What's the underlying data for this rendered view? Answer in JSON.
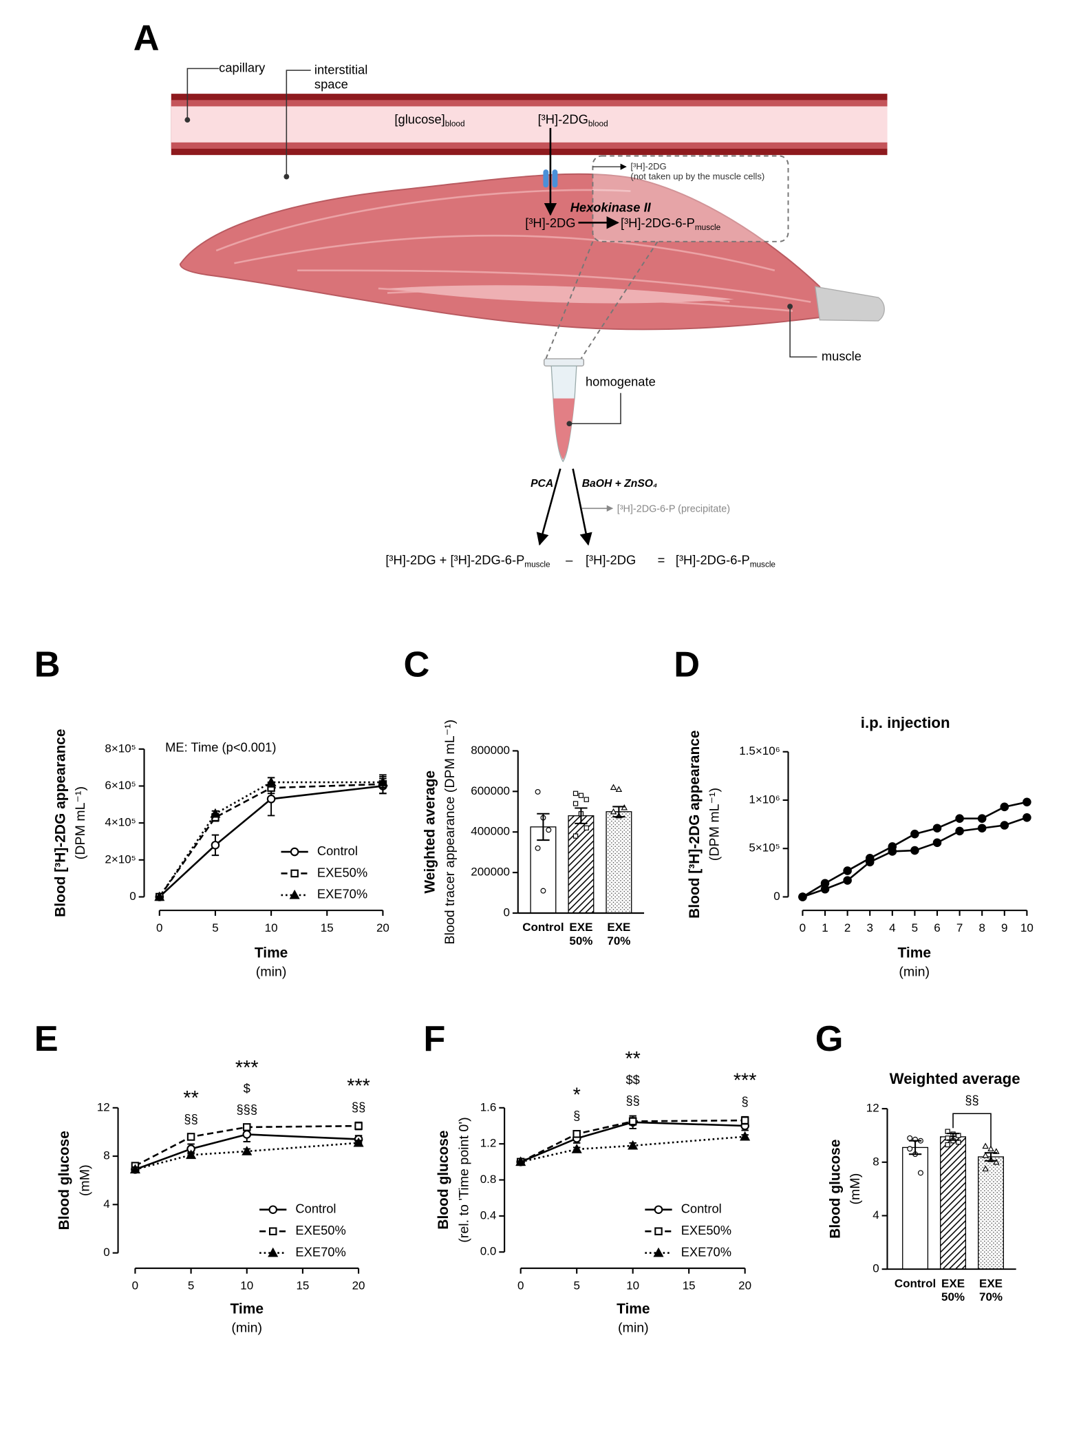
{
  "diagram": {
    "panel_label": "A",
    "capillary": "capillary",
    "interstitial_space": [
      "interstitial",
      "space"
    ],
    "glucose_blood": {
      "main": "[glucose]",
      "sub": "blood"
    },
    "tracer_blood": {
      "main": "[³H]-2DG",
      "sub": "blood"
    },
    "not_taken_up": [
      "[³H]-2DG",
      "(not taken up by the muscle cells)"
    ],
    "enzyme": "Hexokinase II",
    "substrate": "[³H]-2DG",
    "product": {
      "main": "[³H]-2DG-6-P",
      "sub": "muscle"
    },
    "muscle": "muscle",
    "homogenate": "homogenate",
    "pca": "PCA",
    "precipitation": "BaOH + ZnSO₄",
    "precipitate": "[³H]-2DG-6-P (precipitate)",
    "equation": {
      "lhs_main": "[³H]-2DG + [³H]-2DG-6-P",
      "lhs_sub": "muscle",
      "minus": "–",
      "subtrahend": "[³H]-2DG",
      "equals": "=",
      "rhs_main": "[³H]-2DG-6-P",
      "rhs_sub": "muscle"
    }
  },
  "chart_data": [
    {
      "type": "line",
      "panel_label": "B",
      "annotation": "ME: Time (p<0.001)",
      "ylabel": [
        "Blood [³H]-2DG appearance",
        "(DPM mL⁻¹)"
      ],
      "xlabel": [
        "Time",
        "(min)"
      ],
      "x": [
        0,
        5,
        10,
        20
      ],
      "xlim": [
        0,
        20
      ],
      "xticks": [
        0,
        5,
        10,
        15,
        20
      ],
      "ylim": [
        0,
        800000
      ],
      "yticks": [
        0,
        {
          "value": 200000,
          "label": "2×10⁵"
        },
        {
          "value": 400000,
          "label": "4×10⁵"
        },
        {
          "value": 600000,
          "label": "6×10⁵"
        },
        {
          "value": 800000,
          "label": "8×10⁵"
        }
      ],
      "legend": "lower right",
      "series": [
        {
          "name": "Control",
          "color": "#000000",
          "marker": "circle-open",
          "dash": "solid",
          "values": [
            0,
            280000,
            530000,
            600000
          ],
          "errors": [
            0,
            55000,
            90000,
            40000
          ]
        },
        {
          "name": "EXE50%",
          "color": "#000000",
          "marker": "square-open",
          "dash": "dashed",
          "values": [
            0,
            430000,
            590000,
            610000
          ],
          "errors": [
            0,
            20000,
            30000,
            50000
          ]
        },
        {
          "name": "EXE70%",
          "color": "#000000",
          "marker": "triangle-filled",
          "dash": "dotted",
          "values": [
            0,
            450000,
            620000,
            620000
          ],
          "errors": [
            0,
            15000,
            25000,
            30000
          ]
        }
      ]
    },
    {
      "type": "bar",
      "panel_label": "C",
      "ylabel": [
        "Weighted average",
        "Blood tracer appearance  (DPM mL⁻¹)"
      ],
      "categories": [
        [
          "Control"
        ],
        [
          "EXE",
          "50%"
        ],
        [
          "EXE",
          "70%"
        ]
      ],
      "values": [
        425000,
        480000,
        500000
      ],
      "errors": [
        65000,
        38000,
        25000
      ],
      "patterns": [
        "none",
        "hatch",
        "dots"
      ],
      "markers": [
        "circle-open",
        "square-open",
        "triangle-open"
      ],
      "color": "#000000",
      "points": [
        [
          598000,
          470000,
          410000,
          320000,
          110000
        ],
        [
          590000,
          580000,
          560000,
          540000,
          490000,
          420000,
          380000
        ],
        [
          620000,
          610000,
          520000,
          500000,
          480000
        ]
      ],
      "ylim": [
        0,
        800000
      ],
      "yticks": [
        0,
        200000,
        400000,
        600000,
        800000
      ]
    },
    {
      "type": "line",
      "panel_label": "D",
      "title": "i.p. injection",
      "ylabel": [
        "Blood [³H]-2DG appearance",
        "(DPM mL⁻¹)"
      ],
      "xlabel": [
        "Time",
        "(min)"
      ],
      "x": [
        0,
        1,
        2,
        3,
        4,
        5,
        6,
        7,
        8,
        9,
        10
      ],
      "xlim": [
        0,
        10
      ],
      "xticks": [
        0,
        1,
        2,
        3,
        4,
        5,
        6,
        7,
        8,
        9,
        10
      ],
      "ylim": [
        0,
        1500000
      ],
      "yticks": [
        0,
        {
          "value": 500000,
          "label": "5×10⁵"
        },
        {
          "value": 1000000,
          "label": "1×10⁶"
        },
        {
          "value": 1500000,
          "label": "1.5×10⁶"
        }
      ],
      "series": [
        {
          "color": "#000000",
          "marker": "circle-filled",
          "dash": "solid",
          "values": [
            0,
            140000,
            270000,
            400000,
            520000,
            650000,
            710000,
            810000,
            810000,
            930000,
            980000
          ]
        },
        {
          "color": "#000000",
          "marker": "circle-filled",
          "dash": "solid",
          "values": [
            0,
            80000,
            170000,
            360000,
            470000,
            480000,
            560000,
            680000,
            710000,
            740000,
            820000
          ]
        }
      ]
    },
    {
      "type": "line",
      "panel_label": "E",
      "ylabel": [
        "Blood glucose",
        "(mM)"
      ],
      "xlabel": [
        "Time",
        "(min)"
      ],
      "x": [
        0,
        5,
        10,
        20
      ],
      "xlim": [
        0,
        20
      ],
      "xticks": [
        0,
        5,
        10,
        15,
        20
      ],
      "ylim": [
        0,
        12
      ],
      "yticks": [
        0,
        4,
        8,
        12
      ],
      "legend": "lower right",
      "annotations": [
        {
          "x": 5,
          "lines": [
            "**",
            "§§"
          ]
        },
        {
          "x": 10,
          "lines": [
            "***",
            "$",
            "§§§"
          ]
        },
        {
          "x": 20,
          "lines": [
            "***",
            "§§"
          ]
        }
      ],
      "series": [
        {
          "name": "Control",
          "color": "#000000",
          "marker": "circle-open",
          "dash": "solid",
          "values": [
            6.9,
            8.6,
            9.8,
            9.4
          ],
          "errors": [
            0.2,
            0.4,
            0.6,
            0.3
          ]
        },
        {
          "name": "EXE50%",
          "color": "#000000",
          "marker": "square-open",
          "dash": "dashed",
          "values": [
            7.2,
            9.6,
            10.4,
            10.5
          ],
          "errors": [
            0.2,
            0.2,
            0.2,
            0.3
          ]
        },
        {
          "name": "EXE70%",
          "color": "#000000",
          "marker": "triangle-filled",
          "dash": "dotted",
          "values": [
            6.9,
            8.1,
            8.4,
            9.1
          ],
          "errors": [
            0.2,
            0.2,
            0.2,
            0.2
          ]
        }
      ]
    },
    {
      "type": "line",
      "panel_label": "F",
      "ylabel": [
        "Blood glucose",
        "(rel. to 'Time point 0')"
      ],
      "xlabel": [
        "Time",
        "(min)"
      ],
      "x": [
        0,
        5,
        10,
        20
      ],
      "xlim": [
        0,
        20
      ],
      "xticks": [
        0,
        5,
        10,
        15,
        20
      ],
      "ylim": [
        0,
        1.6
      ],
      "yticks": [
        {
          "value": 0,
          "label": "0.0"
        },
        0.4,
        0.8,
        1.2,
        1.6
      ],
      "legend": "lower right",
      "annotations": [
        {
          "x": 5,
          "lines": [
            "*",
            "§"
          ]
        },
        {
          "x": 10,
          "lines": [
            "**",
            "$$",
            "§§"
          ]
        },
        {
          "x": 20,
          "lines": [
            "***",
            "§"
          ]
        }
      ],
      "series": [
        {
          "name": "Control",
          "color": "#000000",
          "marker": "circle-open",
          "dash": "solid",
          "values": [
            1.0,
            1.26,
            1.44,
            1.4
          ],
          "errors": [
            0.01,
            0.05,
            0.07,
            0.05
          ]
        },
        {
          "name": "EXE50%",
          "color": "#000000",
          "marker": "square-open",
          "dash": "dashed",
          "values": [
            1.0,
            1.31,
            1.45,
            1.46
          ],
          "errors": [
            0.01,
            0.03,
            0.04,
            0.04
          ]
        },
        {
          "name": "EXE70%",
          "color": "#000000",
          "marker": "triangle-filled",
          "dash": "dotted",
          "values": [
            1.0,
            1.14,
            1.18,
            1.28
          ],
          "errors": [
            0.01,
            0.02,
            0.03,
            0.02
          ]
        }
      ]
    },
    {
      "type": "bar",
      "panel_label": "G",
      "title": "Weighted average",
      "ylabel": [
        "Blood glucose",
        "(mM)"
      ],
      "categories": [
        [
          "Control"
        ],
        [
          "EXE",
          "50%"
        ],
        [
          "EXE",
          "70%"
        ]
      ],
      "values": [
        9.1,
        9.9,
        8.4
      ],
      "errors": [
        0.5,
        0.25,
        0.3
      ],
      "patterns": [
        "none",
        "hatch",
        "dots"
      ],
      "markers": [
        "circle-open",
        "square-open",
        "triangle-open"
      ],
      "color": "#000000",
      "points": [
        [
          9.8,
          9.7,
          9.6,
          9.0,
          8.6,
          7.2
        ],
        [
          10.3,
          10.1,
          10.0,
          9.8,
          9.6,
          9.5,
          9.3
        ],
        [
          9.2,
          9.0,
          8.8,
          8.5,
          8.2,
          8.0,
          7.5
        ]
      ],
      "bracket": {
        "label": "§§",
        "between": [
          1,
          2
        ]
      },
      "ylim": [
        0,
        12
      ],
      "yticks": [
        0,
        4,
        8,
        12
      ]
    }
  ]
}
